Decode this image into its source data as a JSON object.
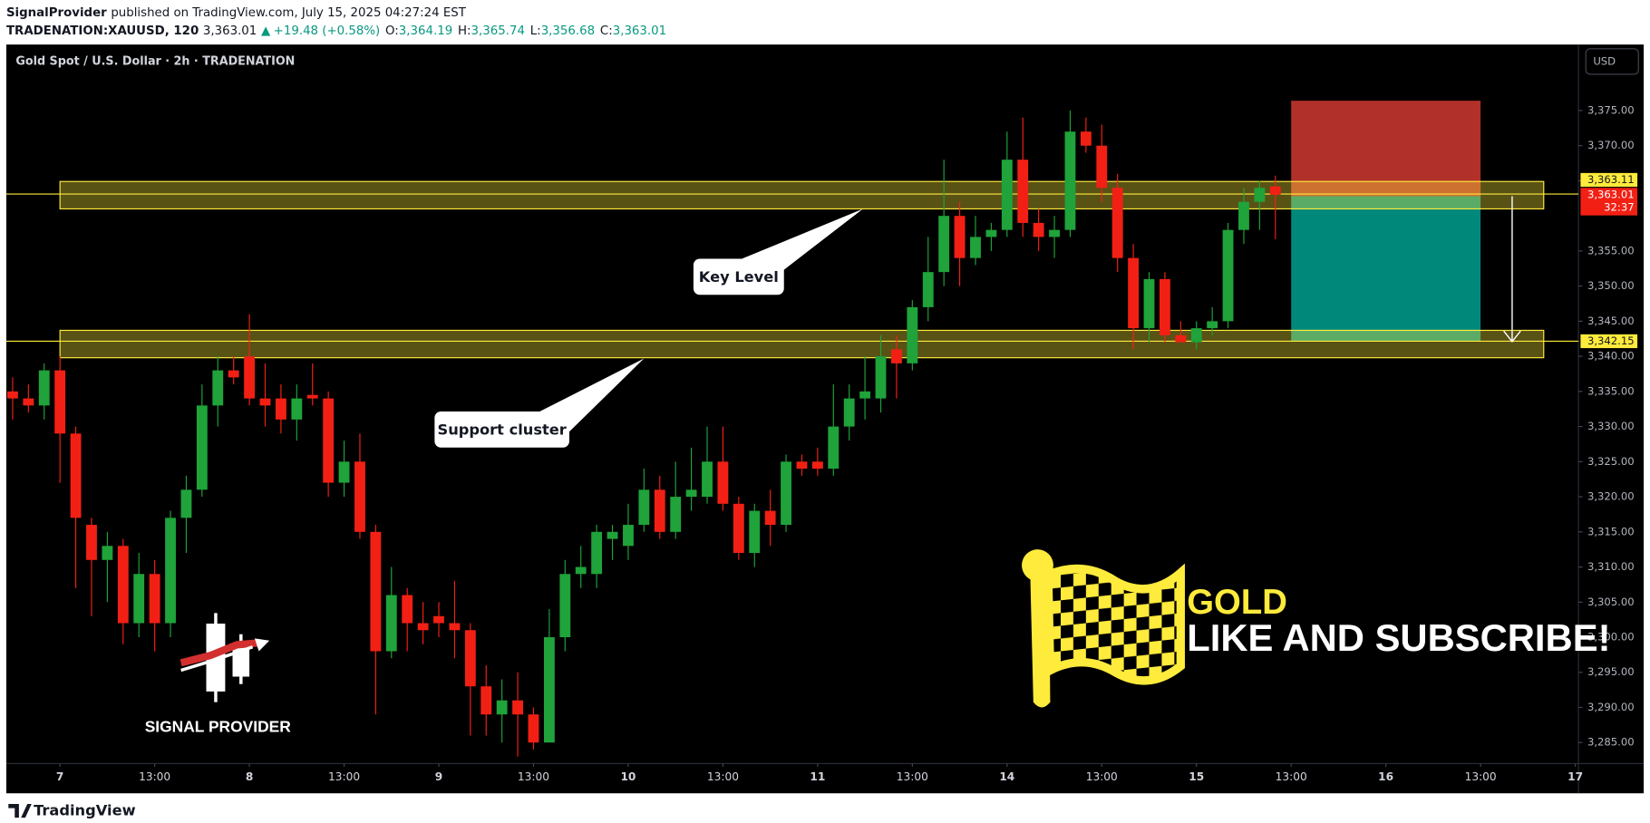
{
  "header": {
    "author": "SignalProvider",
    "published": "published on TradingView.com, July 15, 2025 04:27:24 EST",
    "symbol": "TRADENATION:XAUUSD, 120",
    "last": "3,363.01",
    "change_arrow": "▲",
    "change": "+19.48 (+0.58%)",
    "ohlc": [
      {
        "label": "O:",
        "value": "3,364.19"
      },
      {
        "label": "H:",
        "value": "3,365.74"
      },
      {
        "label": "L:",
        "value": "3,356.68"
      },
      {
        "label": "C:",
        "value": "3,363.01"
      }
    ]
  },
  "watermarks": {
    "logo_text": "SIGNAL PROVIDER",
    "title": "GOLD",
    "cta": "LIKE AND SUBSCRIBE!"
  },
  "footer": {
    "brand": "TradingView"
  },
  "chart_data": {
    "type": "candlestick",
    "title": "Gold Spot / U.S. Dollar · 2h · TRADENATION",
    "currency": "USD",
    "up_color": "#1fa33a",
    "down_color": "#f22014",
    "grid": false,
    "open": [
      3335,
      3334,
      3333,
      3338,
      3329,
      3316,
      3311,
      3313,
      3302,
      3309,
      3302,
      3317,
      3321,
      3333,
      3338,
      3340,
      3334,
      3334,
      3331,
      3334.5,
      3334,
      3322,
      3325,
      3315,
      3298,
      3306,
      3302,
      3303,
      3302,
      3301,
      3293,
      3289,
      3291,
      3289,
      3285,
      3300,
      3309,
      3309,
      3314,
      3313,
      3316,
      3321,
      3315,
      3320,
      3320,
      3325,
      3319,
      3312,
      3318,
      3316,
      3325,
      3325,
      3324,
      3330,
      3334,
      3334,
      3341,
      3339,
      3347,
      3352,
      3360,
      3354,
      3357,
      3358,
      3368,
      3359,
      3357,
      3358,
      3372,
      3370,
      3364,
      3354,
      3344,
      3351,
      3343,
      3342,
      3344,
      3345,
      3358,
      3362,
      3364.19
    ],
    "high": [
      3337,
      3336,
      3339,
      3340,
      3330,
      3317,
      3315,
      3314,
      3312,
      3311,
      3318,
      3323,
      3336,
      3340,
      3340,
      3346,
      3339,
      3336,
      3336,
      3339,
      3335,
      3328,
      3329,
      3316,
      3310,
      3307,
      3305,
      3305,
      3308,
      3302,
      3296,
      3294,
      3295,
      3290,
      3304,
      3311,
      3313,
      3316,
      3316,
      3319,
      3324,
      3323,
      3325,
      3327,
      3330,
      3330,
      3320,
      3319,
      3321,
      3326,
      3326,
      3327,
      3336,
      3336,
      3340,
      3343,
      3343,
      3348,
      3357,
      3368,
      3362,
      3360,
      3359,
      3372,
      3374,
      3361,
      3360,
      3375,
      3374,
      3373,
      3366,
      3356,
      3352,
      3352,
      3345,
      3345,
      3347,
      3359,
      3364,
      3365,
      3365.74
    ],
    "low": [
      3331,
      3332,
      3331,
      3322,
      3307,
      3303,
      3305,
      3299,
      3300,
      3298,
      3300,
      3312,
      3320,
      3330,
      3336,
      3333,
      3330,
      3329,
      3328,
      3333,
      3320,
      3320,
      3314,
      3289,
      3297,
      3298,
      3299,
      3300,
      3297,
      3286,
      3286,
      3285,
      3283,
      3284,
      3285,
      3298,
      3307,
      3307,
      3311,
      3311,
      3315,
      3314,
      3314,
      3318,
      3319,
      3318,
      3311,
      3310,
      3313,
      3315,
      3323,
      3323,
      3323,
      3328,
      3331,
      3332,
      3334,
      3338,
      3345,
      3350,
      3350,
      3353,
      3355,
      3357,
      3357,
      3355,
      3354,
      3357,
      3369,
      3362,
      3352,
      3341,
      3342,
      3342,
      3342,
      3341,
      3343,
      3344,
      3356,
      3358,
      3356.68
    ],
    "close": [
      3334,
      3333,
      3338,
      3329,
      3317,
      3311,
      3313,
      3302,
      3309,
      3302,
      3317,
      3321,
      3333,
      3338,
      3337,
      3334,
      3333,
      3331,
      3334,
      3334,
      3322,
      3325,
      3315,
      3298,
      3306,
      3302,
      3301,
      3302,
      3301,
      3293,
      3289,
      3291,
      3289,
      3285,
      3300,
      3309,
      3310,
      3315,
      3315,
      3316,
      3321,
      3315,
      3320,
      3321,
      3325,
      3319,
      3312,
      3318,
      3316,
      3325,
      3324,
      3324,
      3330,
      3334,
      3335,
      3340,
      3339,
      3347,
      3352,
      3360,
      3354,
      3357,
      3358,
      3368,
      3359,
      3357,
      3358,
      3372,
      3370,
      3364,
      3354,
      3344,
      3351,
      3343,
      3342,
      3344,
      3345,
      3358,
      3362,
      3364,
      3363.01
    ],
    "xlim": [
      -0.4,
      99.2
    ],
    "ylim": [
      3282.3,
      3384.4
    ],
    "xticks": [
      {
        "value": 3,
        "label": "7"
      },
      {
        "value": 9,
        "label": "13:00"
      },
      {
        "value": 15,
        "label": "8"
      },
      {
        "value": 21,
        "label": "13:00"
      },
      {
        "value": 27,
        "label": "9"
      },
      {
        "value": 33,
        "label": "13:00"
      },
      {
        "value": 39,
        "label": "10"
      },
      {
        "value": 45,
        "label": "13:00"
      },
      {
        "value": 51,
        "label": "11"
      },
      {
        "value": 57,
        "label": "13:00"
      },
      {
        "value": 63,
        "label": "14"
      },
      {
        "value": 69,
        "label": "13:00"
      },
      {
        "value": 75,
        "label": "15"
      },
      {
        "value": 81,
        "label": "13:00"
      },
      {
        "value": 87,
        "label": "16"
      },
      {
        "value": 93,
        "label": "13:00"
      },
      {
        "value": 99,
        "label": "17"
      }
    ],
    "yticks": [
      {
        "value": 3285,
        "label": "3,285.00"
      },
      {
        "value": 3290,
        "label": "3,290.00"
      },
      {
        "value": 3295,
        "label": "3,295.00"
      },
      {
        "value": 3300,
        "label": "3,300.00"
      },
      {
        "value": 3305,
        "label": "3,305.00"
      },
      {
        "value": 3310,
        "label": "3,310.00"
      },
      {
        "value": 3315,
        "label": "3,315.00"
      },
      {
        "value": 3320,
        "label": "3,320.00"
      },
      {
        "value": 3325,
        "label": "3,325.00"
      },
      {
        "value": 3330,
        "label": "3,330.00"
      },
      {
        "value": 3335,
        "label": "3,335.00"
      },
      {
        "value": 3340,
        "label": "3,340.00"
      },
      {
        "value": 3345,
        "label": "3,345.00"
      },
      {
        "value": 3350,
        "label": "3,350.00"
      },
      {
        "value": 3355,
        "label": "3,355.00"
      },
      {
        "value": 3365,
        "label": "3,365.00"
      },
      {
        "value": 3370,
        "label": "3,370.00"
      },
      {
        "value": 3375,
        "label": "3,375.00"
      }
    ],
    "zones": [
      {
        "low": 3361,
        "high": 3364.9,
        "start": 3,
        "end": 97
      },
      {
        "low": 3339.8,
        "high": 3343.7,
        "start": 3,
        "end": 97
      }
    ],
    "zone_color": "#ffeb3b",
    "position": {
      "stop": 3376.4,
      "entry": 3362.8,
      "target": 3342.1,
      "start": 81,
      "end": 93,
      "stop_color": "#b2302a",
      "target_color": "#00897b"
    },
    "price_labels": [
      {
        "value": 3363.11,
        "label": "3,363.11",
        "color": "#ffeb3b"
      },
      {
        "value": 3363.01,
        "label": "3,363.01",
        "color": "#f22014",
        "countdown": "32:37"
      },
      {
        "value": 3342.15,
        "label": "3,342.15",
        "color": "#ffeb3b"
      }
    ],
    "annotations": [
      {
        "text": "Key Level"
      },
      {
        "text": "Support cluster"
      }
    ]
  }
}
